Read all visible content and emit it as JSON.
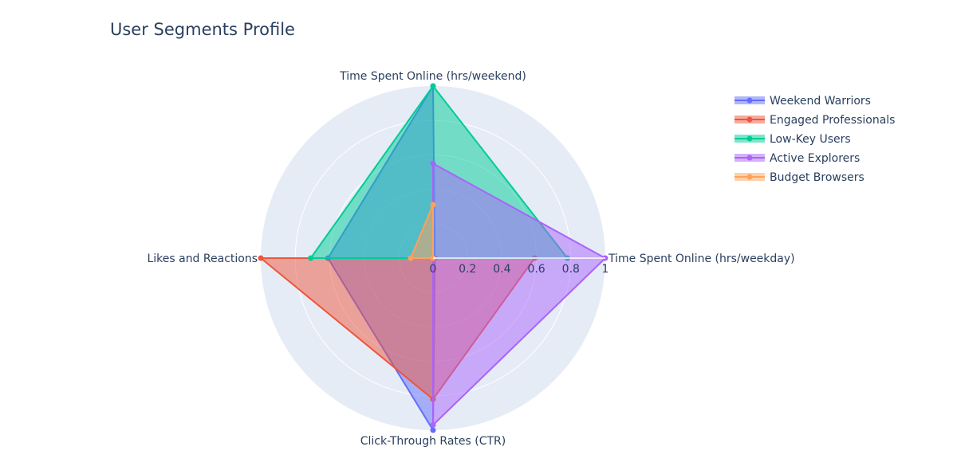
{
  "chart_data": {
    "type": "radar",
    "title": "User Segments Profile",
    "axes": [
      "Time Spent Online (hrs/weekday)",
      "Time Spent Online (hrs/weekend)",
      "Likes and Reactions",
      "Click-Through Rates (CTR)"
    ],
    "radial_range": [
      0,
      1
    ],
    "radial_ticks": [
      "0",
      "0.2",
      "0.4",
      "0.6",
      "0.8",
      "1"
    ],
    "grid": true,
    "legend_position": "top-right",
    "colors": {
      "polar_bg": "#e5ecf6",
      "grid": "#ffffff",
      "text": "#2a3f5f"
    },
    "series": [
      {
        "name": "Weekend Warriors",
        "color": "#636efa",
        "values": [
          0.01,
          1.0,
          0.61,
          1.0
        ]
      },
      {
        "name": "Engaged Professionals",
        "color": "#ef553b",
        "values": [
          0.59,
          0.0,
          1.0,
          0.82
        ]
      },
      {
        "name": "Low-Key Users",
        "color": "#00cc96",
        "values": [
          0.78,
          1.0,
          0.71,
          0.0
        ]
      },
      {
        "name": "Active Explorers",
        "color": "#ab63fa",
        "values": [
          1.0,
          0.55,
          0.0,
          0.97
        ]
      },
      {
        "name": "Budget Browsers",
        "color": "#ffa15a",
        "values": [
          0.0,
          0.31,
          0.13,
          0.0
        ]
      }
    ]
  }
}
